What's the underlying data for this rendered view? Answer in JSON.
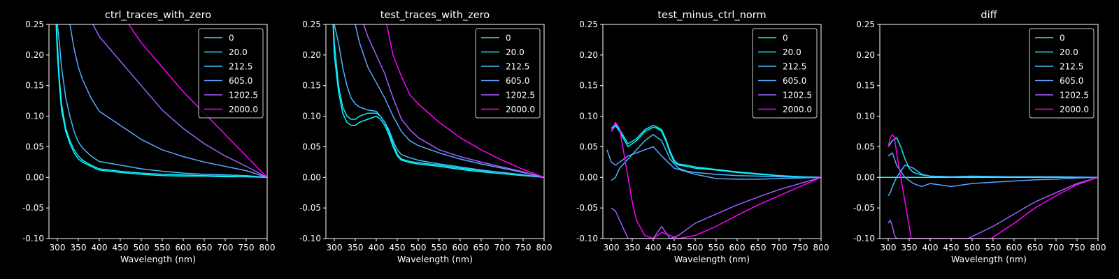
{
  "colors": {
    "background": "#000000",
    "foreground": "#ffffff",
    "series": [
      "#00ffff",
      "#15eaff",
      "#41beff",
      "#5ba4ff",
      "#a15eff",
      "#ff00ff"
    ]
  },
  "chart_data": [
    {
      "type": "line",
      "title": "ctrl_traces_with_zero",
      "xlabel": "Wavelength (nm)",
      "ylabel": "",
      "xlim": [
        280,
        800
      ],
      "ylim": [
        -0.1,
        0.25
      ],
      "xticks": [
        "300",
        "350",
        "400",
        "450",
        "500",
        "550",
        "600",
        "650",
        "700",
        "750",
        "800"
      ],
      "yticks": [
        "-0.10",
        "-0.05",
        "0.00",
        "0.05",
        "0.10",
        "0.15",
        "0.20",
        "0.25"
      ],
      "legend": "top-right",
      "grid": false,
      "series": [
        {
          "name": "0",
          "x": [
            297,
            300,
            305,
            310,
            320,
            330,
            340,
            350,
            360,
            380,
            400,
            450,
            500,
            550,
            600,
            650,
            700,
            750,
            800
          ],
          "y": [
            0.25,
            0.2,
            0.15,
            0.11,
            0.075,
            0.055,
            0.04,
            0.03,
            0.025,
            0.018,
            0.012,
            0.008,
            0.005,
            0.003,
            0.002,
            0.002,
            0.001,
            0.001,
            0
          ]
        },
        {
          "name": "20.0",
          "x": [
            298,
            300,
            305,
            310,
            320,
            330,
            340,
            350,
            360,
            380,
            400,
            450,
            500,
            550,
            600,
            650,
            700,
            750,
            800
          ],
          "y": [
            0.25,
            0.22,
            0.16,
            0.12,
            0.08,
            0.06,
            0.045,
            0.035,
            0.028,
            0.02,
            0.014,
            0.01,
            0.007,
            0.005,
            0.004,
            0.003,
            0.002,
            0.001,
            0
          ]
        },
        {
          "name": "212.5",
          "x": [
            300,
            305,
            310,
            320,
            330,
            340,
            350,
            360,
            380,
            400,
            450,
            500,
            550,
            600,
            650,
            700,
            750,
            800
          ],
          "y": [
            0.25,
            0.22,
            0.18,
            0.13,
            0.1,
            0.075,
            0.058,
            0.048,
            0.035,
            0.026,
            0.02,
            0.014,
            0.01,
            0.007,
            0.005,
            0.004,
            0.003,
            0
          ]
        },
        {
          "name": "605.0",
          "x": [
            330,
            340,
            350,
            360,
            380,
            400,
            450,
            500,
            550,
            600,
            650,
            700,
            750,
            800
          ],
          "y": [
            0.25,
            0.21,
            0.18,
            0.16,
            0.13,
            0.108,
            0.085,
            0.062,
            0.045,
            0.034,
            0.025,
            0.018,
            0.011,
            0
          ]
        },
        {
          "name": "1202.5",
          "x": [
            385,
            400,
            450,
            500,
            550,
            600,
            650,
            700,
            750,
            800
          ],
          "y": [
            0.25,
            0.23,
            0.19,
            0.15,
            0.11,
            0.08,
            0.055,
            0.035,
            0.018,
            0
          ]
        },
        {
          "name": "2000.0",
          "x": [
            470,
            500,
            550,
            600,
            650,
            700,
            750,
            800
          ],
          "y": [
            0.25,
            0.22,
            0.18,
            0.14,
            0.105,
            0.07,
            0.035,
            0
          ]
        }
      ]
    },
    {
      "type": "line",
      "title": "test_traces_with_zero",
      "xlabel": "Wavelength (nm)",
      "ylabel": "",
      "xlim": [
        280,
        800
      ],
      "ylim": [
        -0.1,
        0.25
      ],
      "xticks": [
        "300",
        "350",
        "400",
        "450",
        "500",
        "550",
        "600",
        "650",
        "700",
        "750",
        "800"
      ],
      "yticks": [
        "-0.10",
        "-0.05",
        "0.00",
        "0.05",
        "0.10",
        "0.15",
        "0.20",
        "0.25"
      ],
      "legend": "top-right",
      "grid": false,
      "series": [
        {
          "name": "0",
          "x": [
            297,
            300,
            310,
            320,
            330,
            340,
            350,
            360,
            380,
            400,
            410,
            420,
            430,
            440,
            450,
            460,
            480,
            500,
            550,
            600,
            650,
            700,
            750,
            800
          ],
          "y": [
            0.25,
            0.2,
            0.14,
            0.105,
            0.09,
            0.085,
            0.085,
            0.09,
            0.095,
            0.1,
            0.095,
            0.085,
            0.07,
            0.05,
            0.035,
            0.028,
            0.024,
            0.022,
            0.018,
            0.013,
            0.009,
            0.006,
            0.003,
            0
          ]
        },
        {
          "name": "20.0",
          "x": [
            298,
            300,
            310,
            320,
            330,
            340,
            350,
            360,
            380,
            400,
            410,
            420,
            430,
            440,
            450,
            460,
            480,
            500,
            550,
            600,
            650,
            700,
            750,
            800
          ],
          "y": [
            0.25,
            0.22,
            0.15,
            0.115,
            0.1,
            0.095,
            0.095,
            0.1,
            0.105,
            0.105,
            0.1,
            0.09,
            0.075,
            0.055,
            0.038,
            0.03,
            0.026,
            0.024,
            0.02,
            0.015,
            0.011,
            0.008,
            0.004,
            0
          ]
        },
        {
          "name": "212.5",
          "x": [
            300,
            310,
            320,
            330,
            340,
            350,
            360,
            380,
            400,
            410,
            420,
            430,
            440,
            450,
            460,
            480,
            500,
            550,
            600,
            650,
            700,
            750,
            800
          ],
          "y": [
            0.25,
            0.22,
            0.18,
            0.15,
            0.13,
            0.12,
            0.115,
            0.11,
            0.108,
            0.1,
            0.09,
            0.078,
            0.06,
            0.045,
            0.037,
            0.032,
            0.028,
            0.022,
            0.017,
            0.012,
            0.008,
            0.004,
            0
          ]
        },
        {
          "name": "605.0",
          "x": [
            350,
            360,
            380,
            400,
            420,
            440,
            460,
            480,
            500,
            550,
            600,
            650,
            700,
            750,
            800
          ],
          "y": [
            0.25,
            0.22,
            0.18,
            0.155,
            0.13,
            0.1,
            0.075,
            0.06,
            0.052,
            0.04,
            0.03,
            0.022,
            0.015,
            0.008,
            0
          ]
        },
        {
          "name": "1202.5",
          "x": [
            370,
            380,
            400,
            420,
            440,
            460,
            480,
            500,
            550,
            600,
            650,
            700,
            750,
            800
          ],
          "y": [
            0.25,
            0.23,
            0.2,
            0.17,
            0.13,
            0.095,
            0.078,
            0.065,
            0.045,
            0.034,
            0.025,
            0.017,
            0.009,
            0
          ]
        },
        {
          "name": "2000.0",
          "x": [
            425,
            440,
            460,
            480,
            500,
            550,
            600,
            650,
            700,
            750,
            800
          ],
          "y": [
            0.25,
            0.2,
            0.165,
            0.135,
            0.12,
            0.09,
            0.065,
            0.045,
            0.028,
            0.013,
            0
          ]
        }
      ]
    },
    {
      "type": "line",
      "title": "test_minus_ctrl_norm",
      "xlabel": "Wavelength (nm)",
      "ylabel": "",
      "xlim": [
        280,
        800
      ],
      "ylim": [
        -0.1,
        0.25
      ],
      "xticks": [
        "300",
        "350",
        "400",
        "450",
        "500",
        "550",
        "600",
        "650",
        "700",
        "750",
        "800"
      ],
      "yticks": [
        "-0.10",
        "-0.05",
        "0.00",
        "0.05",
        "0.10",
        "0.15",
        "0.20",
        "0.25"
      ],
      "legend": "top-right",
      "grid": false,
      "series": [
        {
          "name": "0",
          "x": [
            300,
            310,
            320,
            340,
            360,
            380,
            400,
            410,
            420,
            430,
            440,
            450,
            460,
            480,
            500,
            550,
            600,
            650,
            700,
            750,
            800
          ],
          "y": [
            0.075,
            0.085,
            0.075,
            0.05,
            0.06,
            0.075,
            0.082,
            0.08,
            0.075,
            0.06,
            0.04,
            0.025,
            0.02,
            0.018,
            0.015,
            0.012,
            0.008,
            0.005,
            0.003,
            0.001,
            0
          ]
        },
        {
          "name": "20.0",
          "x": [
            300,
            310,
            320,
            340,
            360,
            380,
            400,
            410,
            420,
            430,
            440,
            450,
            460,
            480,
            500,
            550,
            600,
            650,
            700,
            750,
            800
          ],
          "y": [
            0.08,
            0.088,
            0.078,
            0.055,
            0.063,
            0.078,
            0.085,
            0.082,
            0.078,
            0.063,
            0.043,
            0.028,
            0.022,
            0.02,
            0.017,
            0.013,
            0.009,
            0.006,
            0.003,
            0.001,
            0
          ]
        },
        {
          "name": "212.5",
          "x": [
            300,
            310,
            320,
            340,
            360,
            380,
            400,
            420,
            440,
            460,
            480,
            500,
            550,
            600,
            650,
            700,
            750,
            800
          ],
          "y": [
            -0.005,
            0,
            0.015,
            0.03,
            0.045,
            0.06,
            0.07,
            0.06,
            0.03,
            0.015,
            0.01,
            0.008,
            0.005,
            0.003,
            0.002,
            0.001,
            0,
            0
          ]
        },
        {
          "name": "605.0",
          "x": [
            290,
            300,
            310,
            320,
            340,
            360,
            380,
            400,
            420,
            450,
            500,
            550,
            600,
            650,
            700,
            750,
            800
          ],
          "y": [
            0.045,
            0.025,
            0.02,
            0.025,
            0.035,
            0.04,
            0.045,
            0.05,
            0.035,
            0.015,
            0.005,
            -0.002,
            -0.003,
            -0.003,
            -0.002,
            -0.001,
            0
          ]
        },
        {
          "name": "1202.5",
          "x": [
            300,
            310,
            320,
            330,
            340,
            400,
            420,
            440,
            460,
            480,
            500,
            550,
            600,
            650,
            700,
            750,
            800
          ],
          "y": [
            -0.05,
            -0.055,
            -0.07,
            -0.085,
            -0.1,
            -0.1,
            -0.08,
            -0.1,
            -0.095,
            -0.085,
            -0.075,
            -0.06,
            -0.045,
            -0.032,
            -0.02,
            -0.01,
            0
          ]
        },
        {
          "name": "2000.0",
          "x": [
            300,
            310,
            320,
            330,
            340,
            350,
            360,
            380,
            400,
            420,
            460,
            500,
            550,
            600,
            650,
            700,
            750,
            800
          ],
          "y": [
            0.075,
            0.09,
            0.08,
            0.04,
            0.0,
            -0.04,
            -0.07,
            -0.095,
            -0.1,
            -0.09,
            -0.1,
            -0.095,
            -0.08,
            -0.062,
            -0.045,
            -0.03,
            -0.015,
            0
          ]
        }
      ]
    },
    {
      "type": "line",
      "title": "diff",
      "xlabel": "Wavelength (nm)",
      "ylabel": "",
      "xlim": [
        280,
        800
      ],
      "ylim": [
        -0.1,
        0.25
      ],
      "xticks": [
        "300",
        "350",
        "400",
        "450",
        "500",
        "550",
        "600",
        "650",
        "700",
        "750",
        "800"
      ],
      "yticks": [
        "-0.10",
        "-0.05",
        "0.00",
        "0.05",
        "0.10",
        "0.15",
        "0.20",
        "0.25"
      ],
      "legend": "top-right",
      "grid": false,
      "series": [
        {
          "name": "0",
          "x": [
            280,
            800
          ],
          "y": [
            0,
            0
          ]
        },
        {
          "name": "20.0",
          "x": [
            300,
            310,
            320,
            330,
            340,
            350,
            360,
            380,
            400,
            450,
            500,
            550,
            600,
            650,
            700,
            750,
            800
          ],
          "y": [
            0.05,
            0.06,
            0.065,
            0.05,
            0.03,
            0.015,
            0.008,
            0.004,
            0.002,
            0.001,
            0.001,
            0.001,
            0.001,
            0.001,
            0,
            0,
            0
          ]
        },
        {
          "name": "212.5",
          "x": [
            300,
            305,
            310,
            320,
            340,
            360,
            380,
            400,
            450,
            500,
            600,
            700,
            800
          ],
          "y": [
            -0.03,
            -0.025,
            -0.015,
            0.0,
            0.02,
            0.015,
            0.005,
            0.002,
            0.001,
            0.002,
            0.001,
            0.001,
            0
          ]
        },
        {
          "name": "605.0",
          "x": [
            300,
            310,
            320,
            340,
            360,
            380,
            400,
            420,
            450,
            500,
            550,
            600,
            650,
            700,
            750,
            800
          ],
          "y": [
            0.035,
            0.04,
            0.02,
            0.0,
            -0.01,
            -0.015,
            -0.01,
            -0.012,
            -0.015,
            -0.01,
            -0.008,
            -0.006,
            -0.004,
            -0.003,
            -0.001,
            0
          ]
        },
        {
          "name": "1202.5",
          "x": [
            300,
            305,
            310,
            315,
            320,
            490,
            550,
            600,
            650,
            700,
            750,
            800
          ],
          "y": [
            -0.075,
            -0.07,
            -0.08,
            -0.095,
            -0.1,
            -0.1,
            -0.08,
            -0.06,
            -0.04,
            -0.025,
            -0.01,
            0
          ]
        },
        {
          "name": "2000.0",
          "x": [
            300,
            305,
            310,
            315,
            320,
            330,
            340,
            350,
            355,
            545,
            600,
            650,
            700,
            750,
            800
          ],
          "y": [
            0.05,
            0.065,
            0.07,
            0.065,
            0.04,
            0.0,
            -0.04,
            -0.08,
            -0.1,
            -0.1,
            -0.075,
            -0.05,
            -0.03,
            -0.012,
            0
          ]
        }
      ]
    }
  ]
}
